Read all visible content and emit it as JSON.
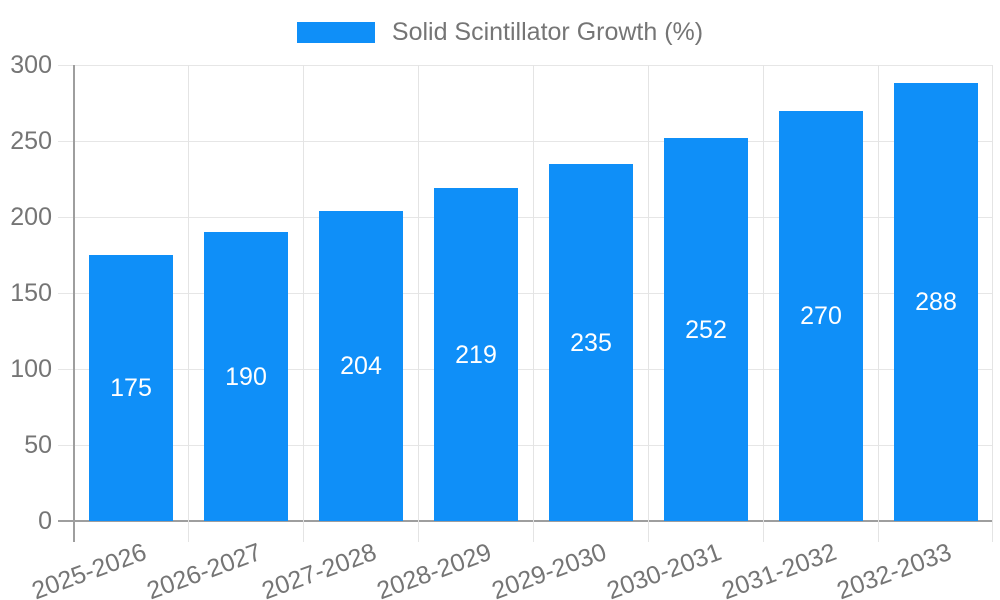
{
  "legend": {
    "label": "Solid Scintillator Growth (%)"
  },
  "chart_data": {
    "type": "bar",
    "title": "",
    "xlabel": "",
    "ylabel": "",
    "categories": [
      "2025-2026",
      "2026-2027",
      "2027-2028",
      "2028-2029",
      "2029-2030",
      "2030-2031",
      "2031-2032",
      "2032-2033"
    ],
    "values": [
      175,
      190,
      204,
      219,
      235,
      252,
      270,
      288
    ],
    "series_name": "Solid Scintillator Growth (%)",
    "value_labels_shown": true,
    "ylim": [
      0,
      300
    ],
    "yticks": [
      0,
      50,
      100,
      150,
      200,
      250,
      300
    ],
    "grid": true,
    "legend_position": "top-center",
    "bar_color": "#0f8ff8",
    "value_label_color": "#ffffff",
    "axis_label_color": "#757575",
    "gridline_color": "#e6e6e6",
    "axis_line_color": "#9e9e9e"
  }
}
